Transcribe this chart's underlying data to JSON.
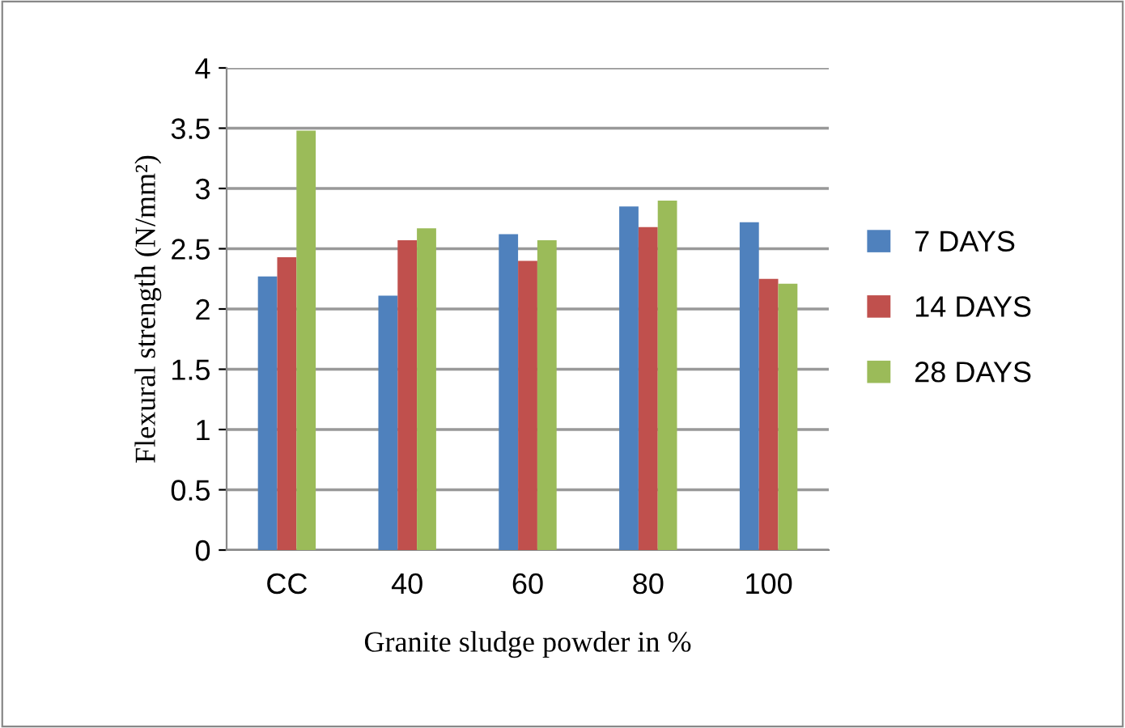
{
  "chart_data": {
    "type": "bar",
    "xlabel": "Granite sludge powder in %",
    "ylabel": "Flexural strength (N/mm²)",
    "categories": [
      "CC",
      "40",
      "60",
      "80",
      "100"
    ],
    "series": [
      {
        "name": "7 DAYS",
        "color": "#4f81bd",
        "values": [
          2.27,
          2.11,
          2.62,
          2.85,
          2.72
        ]
      },
      {
        "name": "14 DAYS",
        "color": "#c0504d",
        "values": [
          2.43,
          2.57,
          2.4,
          2.68,
          2.25
        ]
      },
      {
        "name": "28 DAYS",
        "color": "#9bbb59",
        "values": [
          3.48,
          2.67,
          2.57,
          2.9,
          2.21
        ]
      }
    ],
    "ylim": [
      0,
      4
    ],
    "yticks": [
      0,
      0.5,
      1,
      1.5,
      2,
      2.5,
      3,
      3.5,
      4
    ],
    "grid": "y",
    "legend": "right"
  }
}
